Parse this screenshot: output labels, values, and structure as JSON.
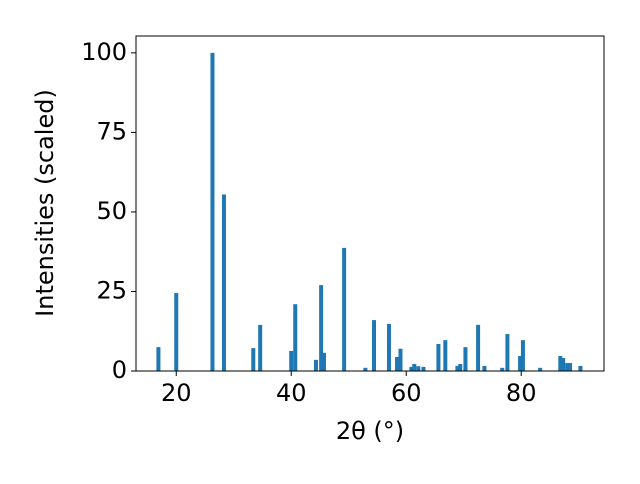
{
  "chart_data": {
    "type": "bar",
    "xlabel": "2θ (°)",
    "ylabel": "Intensities (scaled)",
    "color": "#1f77b4",
    "x": [
      16.9,
      20.0,
      26.3,
      28.3,
      33.4,
      34.6,
      40.0,
      40.7,
      44.3,
      45.2,
      45.7,
      49.2,
      52.9,
      54.4,
      57.0,
      58.4,
      59.0,
      60.9,
      61.4,
      62.1,
      63.0,
      65.6,
      66.8,
      68.9,
      69.4,
      70.3,
      72.5,
      73.6,
      76.7,
      77.6,
      79.8,
      80.3,
      83.3,
      86.8,
      87.3,
      88.0,
      88.5,
      90.3
    ],
    "values": [
      7.5,
      24.5,
      100,
      55.5,
      7.2,
      14.5,
      6.3,
      21,
      3.5,
      27,
      5.7,
      38.7,
      1,
      16,
      14.8,
      4.4,
      7,
      1.3,
      2.2,
      1.5,
      1.3,
      8.5,
      9.7,
      1.6,
      2.2,
      7.5,
      14.5,
      1.6,
      1,
      11.6,
      4.7,
      9.7,
      1,
      4.7,
      4.1,
      2.5,
      2.5,
      1.6
    ],
    "xlim": [
      13.0,
      94.4
    ],
    "ylim": [
      0,
      105.3
    ],
    "xticks": [
      20,
      40,
      60,
      80
    ],
    "yticks": [
      0,
      25,
      50,
      75,
      100
    ]
  }
}
